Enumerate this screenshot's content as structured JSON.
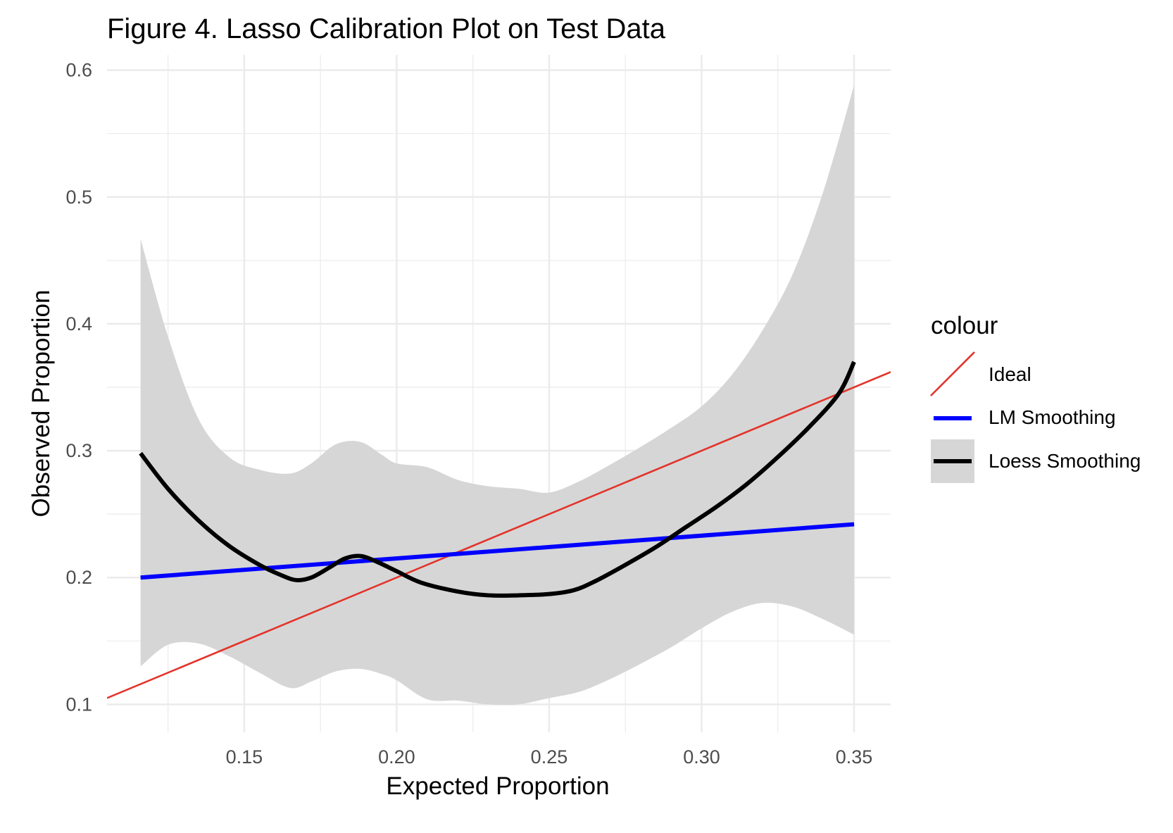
{
  "chart_data": {
    "type": "line",
    "title": "Figure 4. Lasso Calibration Plot on Test Data",
    "xlabel": "Expected Proportion",
    "ylabel": "Observed Proportion",
    "xlim": [
      0.105,
      0.362
    ],
    "ylim": [
      0.078,
      0.612
    ],
    "x_ticks": [
      0.15,
      0.2,
      0.25,
      0.3,
      0.35
    ],
    "x_tick_labels": [
      "0.15",
      "0.20",
      "0.25",
      "0.30",
      "0.35"
    ],
    "y_ticks": [
      0.1,
      0.2,
      0.3,
      0.4,
      0.5,
      0.6
    ],
    "y_tick_labels": [
      "0.1",
      "0.2",
      "0.3",
      "0.4",
      "0.5",
      "0.6"
    ],
    "grid": true,
    "legend": {
      "title": "colour",
      "position": "right",
      "entries": [
        "Ideal",
        "LM Smoothing",
        "Loess Smoothing"
      ]
    },
    "colors": {
      "ideal": "#e3332a",
      "lm": "#0000ff",
      "loess": "#000000",
      "ribbon": "#d6d6d6",
      "grid": "#ebebeb"
    },
    "series": [
      {
        "name": "Ideal",
        "x": [
          0.105,
          0.362
        ],
        "y": [
          0.105,
          0.362
        ]
      },
      {
        "name": "LM Smoothing",
        "x": [
          0.116,
          0.35
        ],
        "y": [
          0.2,
          0.242
        ]
      },
      {
        "name": "Loess Smoothing",
        "x": [
          0.116,
          0.125,
          0.135,
          0.145,
          0.155,
          0.162,
          0.167,
          0.172,
          0.178,
          0.183,
          0.188,
          0.193,
          0.2,
          0.208,
          0.22,
          0.23,
          0.24,
          0.25,
          0.258,
          0.265,
          0.275,
          0.285,
          0.295,
          0.305,
          0.315,
          0.325,
          0.335,
          0.345,
          0.35
        ],
        "y": [
          0.298,
          0.27,
          0.245,
          0.225,
          0.21,
          0.202,
          0.198,
          0.2,
          0.208,
          0.215,
          0.217,
          0.213,
          0.205,
          0.196,
          0.189,
          0.186,
          0.186,
          0.187,
          0.19,
          0.197,
          0.21,
          0.224,
          0.24,
          0.256,
          0.274,
          0.295,
          0.318,
          0.345,
          0.37
        ],
        "ci_x": [
          0.116,
          0.125,
          0.135,
          0.145,
          0.155,
          0.165,
          0.172,
          0.18,
          0.188,
          0.195,
          0.2,
          0.21,
          0.22,
          0.23,
          0.24,
          0.25,
          0.26,
          0.27,
          0.28,
          0.29,
          0.3,
          0.31,
          0.32,
          0.33,
          0.34,
          0.35
        ],
        "ci_upper": [
          0.467,
          0.39,
          0.325,
          0.295,
          0.285,
          0.282,
          0.29,
          0.305,
          0.307,
          0.297,
          0.29,
          0.287,
          0.277,
          0.272,
          0.27,
          0.267,
          0.276,
          0.289,
          0.303,
          0.318,
          0.335,
          0.36,
          0.395,
          0.44,
          0.505,
          0.588
        ],
        "ci_lower": [
          0.13,
          0.147,
          0.148,
          0.138,
          0.125,
          0.113,
          0.118,
          0.126,
          0.128,
          0.124,
          0.119,
          0.104,
          0.103,
          0.1,
          0.1,
          0.105,
          0.11,
          0.12,
          0.132,
          0.145,
          0.16,
          0.173,
          0.18,
          0.177,
          0.167,
          0.155
        ]
      }
    ]
  }
}
